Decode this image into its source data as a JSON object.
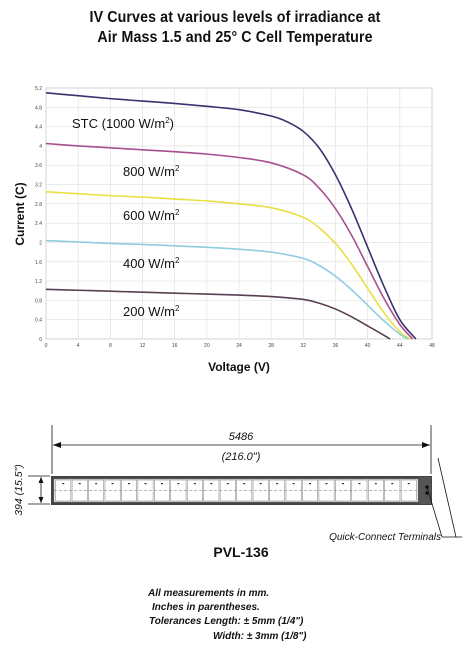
{
  "title_line1": "IV Curves at various levels of irradiance at",
  "title_line2": "Air Mass 1.5 and 25° C Cell Temperature",
  "chart_data": {
    "type": "line",
    "xlabel": "Voltage (V)",
    "ylabel": "Current (C)",
    "xlim": [
      0,
      48
    ],
    "ylim": [
      0,
      5.2
    ],
    "x_ticks": [
      0,
      4,
      8,
      12,
      16,
      20,
      24,
      28,
      32,
      36,
      40,
      44,
      48
    ],
    "y_ticks": [
      0,
      0.4,
      0.8,
      1.2,
      1.6,
      2,
      2.4,
      2.8,
      3.2,
      3.6,
      4,
      4.4,
      4.8,
      5.2
    ],
    "grid": true,
    "series": [
      {
        "name": "STC (1000 W/m²)",
        "label_main": "STC (1000 W/m",
        "label_tail": ")",
        "color": "#3d2f6e",
        "x": [
          0,
          4,
          8,
          12,
          16,
          20,
          24,
          28,
          30,
          32,
          34,
          36,
          38,
          40,
          42,
          44,
          46
        ],
        "y": [
          5.1,
          5.04,
          4.98,
          4.93,
          4.88,
          4.82,
          4.75,
          4.62,
          4.5,
          4.3,
          3.95,
          3.4,
          2.7,
          1.9,
          1.1,
          0.4,
          0
        ]
      },
      {
        "name": "800 W/m²",
        "label_main": "800 W/m",
        "label_tail": "",
        "color": "#a8508f",
        "x": [
          0,
          4,
          8,
          12,
          16,
          20,
          24,
          28,
          32,
          34,
          36,
          38,
          40,
          42,
          44,
          45.6
        ],
        "y": [
          4.05,
          4.0,
          3.96,
          3.92,
          3.88,
          3.83,
          3.76,
          3.65,
          3.4,
          3.12,
          2.7,
          2.15,
          1.5,
          0.85,
          0.3,
          0
        ]
      },
      {
        "name": "600 W/m²",
        "label_main": "600 W/m",
        "label_tail": "",
        "color": "#e8e043",
        "x": [
          0,
          4,
          8,
          12,
          16,
          20,
          24,
          28,
          32,
          34,
          36,
          38,
          40,
          42,
          44,
          45.3
        ],
        "y": [
          3.05,
          3.01,
          2.97,
          2.94,
          2.9,
          2.86,
          2.8,
          2.72,
          2.52,
          2.3,
          1.98,
          1.55,
          1.05,
          0.55,
          0.15,
          0
        ]
      },
      {
        "name": "400 W/m²",
        "label_main": "400 W/m",
        "label_tail": "",
        "color": "#8fcde0",
        "x": [
          0,
          4,
          8,
          12,
          16,
          20,
          24,
          28,
          32,
          34,
          36,
          38,
          40,
          42,
          44,
          45
        ],
        "y": [
          2.04,
          2.01,
          1.98,
          1.96,
          1.93,
          1.9,
          1.86,
          1.8,
          1.67,
          1.52,
          1.3,
          1.02,
          0.7,
          0.38,
          0.1,
          0
        ]
      },
      {
        "name": "200 W/m²",
        "label_main": "200 W/m",
        "label_tail": "",
        "color": "#5a3f52",
        "x": [
          0,
          4,
          8,
          12,
          16,
          20,
          24,
          28,
          32,
          34,
          36,
          38,
          40,
          42,
          42.8
        ],
        "y": [
          1.03,
          1.01,
          0.99,
          0.97,
          0.95,
          0.93,
          0.91,
          0.88,
          0.82,
          0.74,
          0.62,
          0.46,
          0.27,
          0.08,
          0
        ]
      }
    ]
  },
  "label_superscript": "2",
  "panel": {
    "length_mm": "5486",
    "length_in": "(216.0\")",
    "width_label": "394 (15.5\")",
    "terminals_label": "Quick-Connect Terminals",
    "cell_count": 22,
    "model": "PVL-136"
  },
  "notes": {
    "line1": "All measurements in mm.",
    "line2": "Inches in parentheses.",
    "line3": "Tolerances Length: ± 5mm (1/4\")",
    "line4": "Width: ± 3mm (1/8\")"
  }
}
